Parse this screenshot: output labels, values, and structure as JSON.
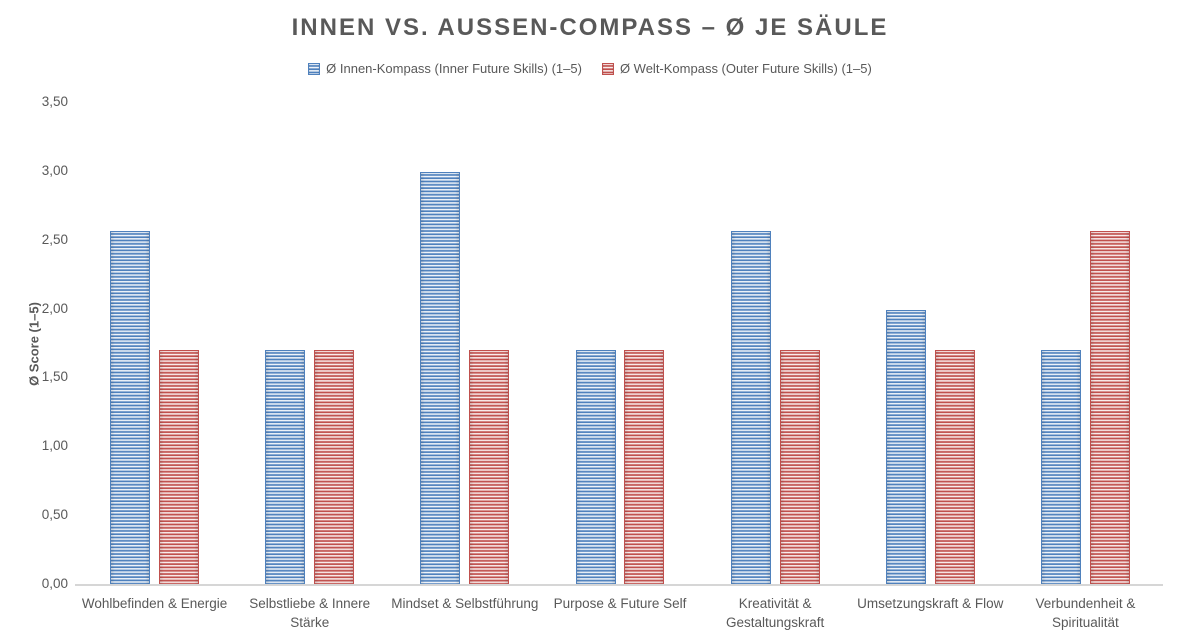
{
  "chart_data": {
    "type": "bar",
    "title": "INNEN VS. AUSSEN-COMPASS – Ø JE SÄULE",
    "xlabel": "",
    "ylabel": "Ø Score (1–5)",
    "categories": [
      "Wohlbefinden & Energie",
      "Selbstliebe & Innere Stärke",
      "Mindset & Selbstführung",
      "Purpose & Future Self",
      "Kreativität & Gestaltungskraft",
      "Umsetzungskraft & Flow",
      "Verbundenheit & Spiritualität"
    ],
    "series": [
      {
        "name": "Ø Innen-Kompass (Inner Future Skills) (1–5)",
        "color": "#4f81bd",
        "light_color": "#dce6f2",
        "values": [
          2.57,
          1.71,
          3.0,
          1.71,
          2.57,
          2.0,
          1.71
        ]
      },
      {
        "name": "Ø Welt-Kompass (Outer Future Skills) (1–5)",
        "color": "#c0504d",
        "light_color": "#f2d7d6",
        "values": [
          1.71,
          1.71,
          1.71,
          1.71,
          1.71,
          1.71,
          2.57
        ]
      }
    ],
    "ylim": [
      0,
      3.5
    ],
    "y_tick_step": 0.5,
    "y_ticks": [
      "0,00",
      "0,50",
      "1,00",
      "1,50",
      "2,00",
      "2,50",
      "3,00",
      "3,50"
    ],
    "grid": false,
    "legend_position": "top",
    "axis_line_color": "#d6d6d6",
    "text_color": "#595959",
    "fill_style": "horizontal-stripes"
  }
}
